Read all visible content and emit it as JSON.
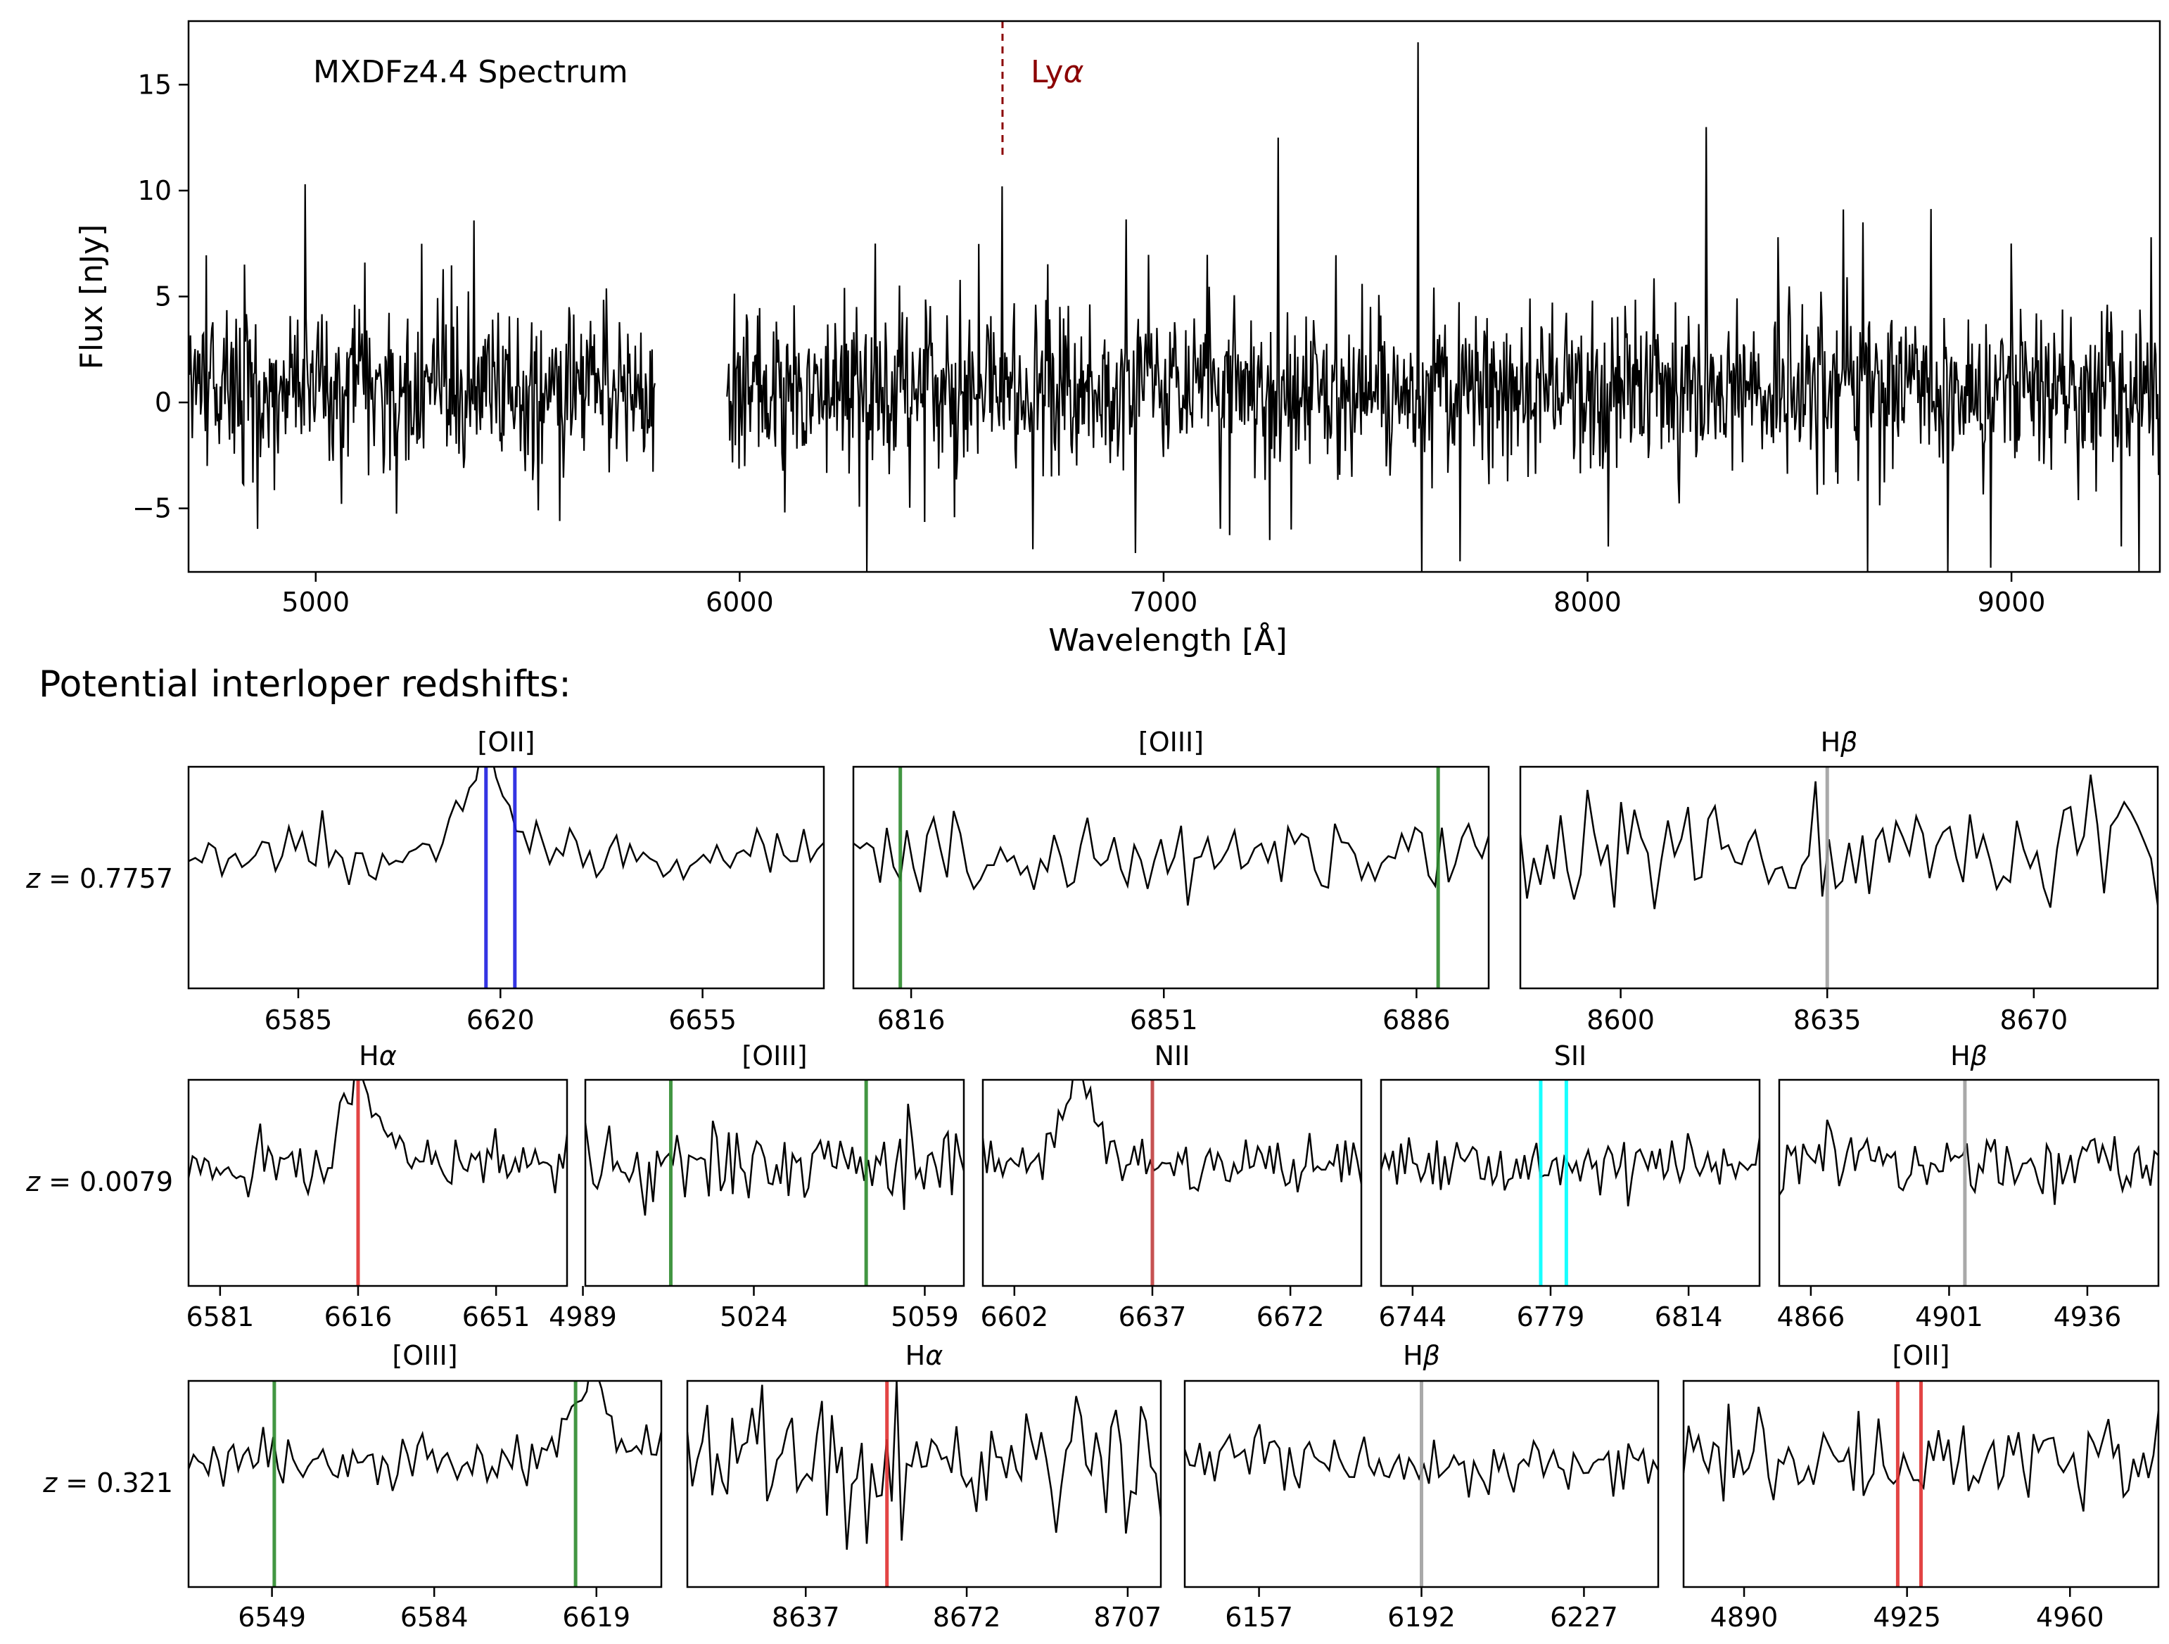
{
  "figure": {
    "section_heading": "Potential interloper redshifts:"
  },
  "chart_data": {
    "main": {
      "type": "line",
      "annotation": "MXDFz4.4 Spectrum",
      "xlabel": "Wavelength [Å]",
      "ylabel": "Flux [nJy]",
      "xlim": [
        4700,
        9350
      ],
      "ylim": [
        -8,
        18
      ],
      "xticks": [
        5000,
        6000,
        7000,
        8000,
        9000
      ],
      "yticks": [
        -5,
        0,
        5,
        10,
        15
      ],
      "ytick_labels": [
        "−5",
        "0",
        "5",
        "10",
        "15"
      ],
      "gap": [
        5800,
        5970
      ],
      "noise_sigma": 1.9,
      "lya": {
        "label": "Lyα",
        "label_main": "Ly",
        "label_greek": "α",
        "x": 6620,
        "ymin": 11.5,
        "ymax": 18,
        "color": "#8b0000"
      },
      "spikes": [
        {
          "x": 4975,
          "y": 10.3
        },
        {
          "x": 5115,
          "y": 6.6
        },
        {
          "x": 6620,
          "y": 10.2
        },
        {
          "x": 6300,
          "y": -8
        },
        {
          "x": 6320,
          "y": 7.5
        },
        {
          "x": 7270,
          "y": 12.5
        },
        {
          "x": 7600,
          "y": 17.0
        },
        {
          "x": 7610,
          "y": -8
        },
        {
          "x": 7250,
          "y": -6.5
        },
        {
          "x": 7300,
          "y": -6
        },
        {
          "x": 7700,
          "y": -7.5
        },
        {
          "x": 8050,
          "y": -6.8
        },
        {
          "x": 8280,
          "y": 13.0
        },
        {
          "x": 8450,
          "y": 7.8
        },
        {
          "x": 8650,
          "y": 8.5
        },
        {
          "x": 8660,
          "y": -8
        },
        {
          "x": 8850,
          "y": -8
        },
        {
          "x": 9000,
          "y": 7.5
        },
        {
          "x": 9330,
          "y": 7.8
        },
        {
          "x": 9300,
          "y": -8
        },
        {
          "x": 8950,
          "y": -7.8
        }
      ]
    },
    "rows": [
      {
        "label_var": "z",
        "label_value": "= 0.7757",
        "panels": [
          {
            "title": "[OII]",
            "xlim": [
              6566,
              6676
            ],
            "ylim": [
              -8,
              6
            ],
            "xticks": [
              6585,
              6620,
              6655
            ],
            "lines": [
              6617.5,
              6622.5
            ],
            "color": "#1f1fe0",
            "peak": {
              "x": 6616,
              "y": 5.0,
              "w": 3.5
            },
            "sigma": 0.8,
            "seed": 11
          },
          {
            "title": "[OIII]",
            "xlim": [
              6808,
              6896
            ],
            "ylim": [
              -8,
              6
            ],
            "xticks": [
              6816,
              6851,
              6886
            ],
            "lines": [
              6814.5,
              6889
            ],
            "color": "#2e8b2e",
            "peak": null,
            "sigma": 1.3,
            "seed": 12,
            "xoffset": 2000
          },
          {
            "title": "Hβ",
            "title_main": "H",
            "title_greek": "β",
            "xlim": [
              8583,
              8691
            ],
            "ylim": [
              -8,
              6
            ],
            "xticks": [
              8600,
              8635,
              8670
            ],
            "lines": [
              8635
            ],
            "color": "#a0a0a0",
            "peak": null,
            "sigma": 1.8,
            "seed": 13
          }
        ]
      },
      {
        "label_var": "z",
        "label_value": "= 0.0079",
        "panels": [
          {
            "title": "Hα",
            "title_main": "H",
            "title_greek": "α",
            "xlim": [
              6573,
              6669
            ],
            "ylim": [
              -8,
              6
            ],
            "xticks": [
              6581,
              6616,
              6651
            ],
            "lines": [
              6616
            ],
            "color": "#e03030",
            "peak": {
              "x": 6615,
              "y": 5.0,
              "w": 3.5
            },
            "sigma": 1.0,
            "seed": 21
          },
          {
            "title": "[OIII]",
            "xlim": [
              4989.5,
              5067
            ],
            "ylim": [
              -8,
              6
            ],
            "xticks": [
              4989,
              5024,
              5059
            ],
            "lines": [
              5007,
              5047
            ],
            "color": "#2e8b2e",
            "peak": null,
            "sigma": 1.5,
            "seed": 22
          },
          {
            "title": "NII",
            "xlim": [
              6594,
              6690
            ],
            "ylim": [
              -8,
              6
            ],
            "xticks": [
              6602,
              6637,
              6672
            ],
            "lines": [
              6637
            ],
            "color": "#c04040",
            "peak": {
              "x": 6617,
              "y": 4.5,
              "w": 4
            },
            "sigma": 0.9,
            "seed": 23
          },
          {
            "title": "SII",
            "xlim": [
              6736,
              6832
            ],
            "ylim": [
              -8,
              6
            ],
            "xticks": [
              6744,
              6779,
              6814
            ],
            "lines": [
              6776.5,
              6783
            ],
            "color": "#00ffff",
            "peak": null,
            "sigma": 1.0,
            "seed": 24
          },
          {
            "title": "Hβ",
            "title_main": "H",
            "title_greek": "β",
            "xlim": [
              4858,
              4954
            ],
            "ylim": [
              -8,
              6
            ],
            "xticks": [
              4866,
              4901,
              4936
            ],
            "lines": [
              4905
            ],
            "color": "#a0a0a0",
            "peak": null,
            "sigma": 1.2,
            "seed": 25
          }
        ]
      },
      {
        "label_var": "z",
        "label_value": "= 0.321",
        "panels": [
          {
            "title": "[OIII]",
            "xlim": [
              6531,
              6633
            ],
            "ylim": [
              -8,
              6
            ],
            "xticks": [
              6549,
              6584,
              6619
            ],
            "lines": [
              6549.5,
              6614.5
            ],
            "color": "#2e8b2e",
            "peak": {
              "x": 6617,
              "y": 5.0,
              "w": 3.5
            },
            "sigma": 1.0,
            "seed": 31
          },
          {
            "title": "Hα",
            "title_main": "H",
            "title_greek": "α",
            "xlim": [
              6629,
              6731
            ],
            "ylim": [
              -8,
              6
            ],
            "xticks": [
              8637,
              8672,
              8707
            ],
            "tick_override": true,
            "lines": [
              6672
            ],
            "color": "#e03030",
            "peak": null,
            "sigma": 2.0,
            "seed": 32
          },
          {
            "title": "Hβ",
            "title_main": "H",
            "title_greek": "β",
            "xlim": [
              6141,
              6243
            ],
            "ylim": [
              -8,
              6
            ],
            "xticks": [
              6157,
              6192,
              6227
            ],
            "lines": [
              6192
            ],
            "color": "#a0a0a0",
            "peak": null,
            "sigma": 1.0,
            "seed": 33
          },
          {
            "title": "[OII]",
            "xlim": [
              4877,
              4979
            ],
            "ylim": [
              -8,
              6
            ],
            "xticks": [
              4890,
              4925,
              4960
            ],
            "lines": [
              4923,
              4928
            ],
            "color": "#e03030",
            "peak": null,
            "sigma": 1.6,
            "seed": 34
          }
        ]
      }
    ]
  }
}
